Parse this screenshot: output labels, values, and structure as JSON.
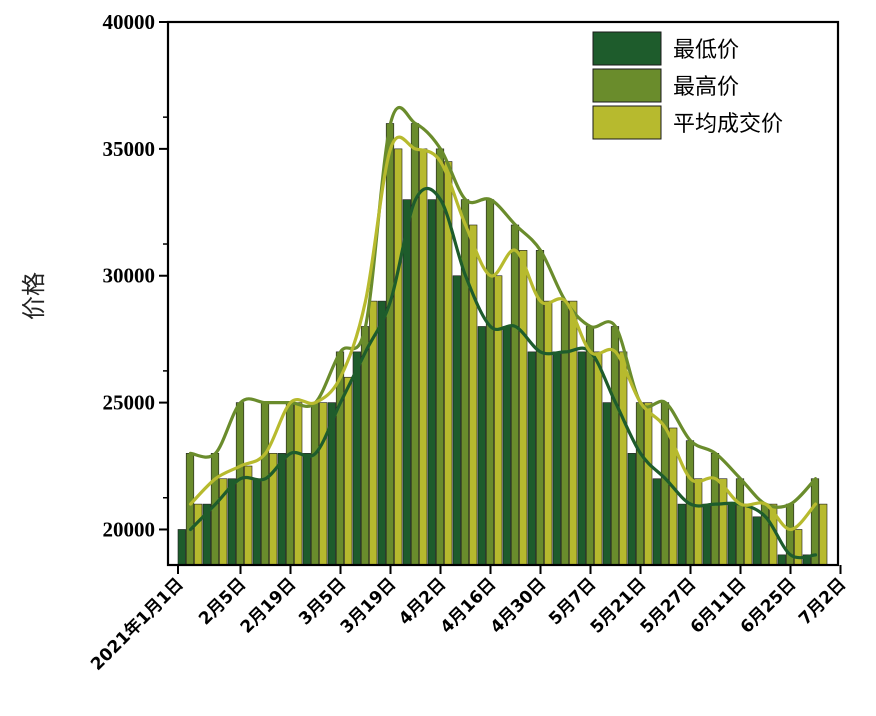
{
  "chart_data": {
    "type": "bar",
    "ylabel": "价格",
    "xlabel": "",
    "ylim": [
      18600,
      40000
    ],
    "yticks": [
      20000,
      25000,
      30000,
      35000,
      40000
    ],
    "x_tick_labels": [
      "2021年1月1日",
      "2月5日",
      "2月19日",
      "3月5日",
      "3月19日",
      "4月2日",
      "4月16日",
      "4月30日",
      "5月7日",
      "5月21日",
      "5月27日",
      "6月11日",
      "6月25日",
      "7月2日"
    ],
    "x_tick_bar_index": [
      0,
      2.5,
      4.5,
      6.5,
      8.5,
      10.5,
      12.5,
      14.5,
      16.5,
      18.5,
      20.5,
      22.5,
      24.5,
      26.5
    ],
    "legend_position": "top-right",
    "series": [
      {
        "name": "最低价",
        "color": "#1e5c2c",
        "values": [
          20000,
          21000,
          22000,
          22000,
          23000,
          23000,
          25000,
          27000,
          29000,
          33000,
          33000,
          30000,
          28000,
          28000,
          27000,
          27000,
          27000,
          25000,
          23000,
          22000,
          21000,
          21000,
          21000,
          20500,
          19000,
          19000
        ]
      },
      {
        "name": "最高价",
        "color": "#6a8c2c",
        "values": [
          23000,
          23000,
          25000,
          25000,
          25000,
          25000,
          27000,
          28000,
          36000,
          36000,
          35000,
          33000,
          33000,
          32000,
          31000,
          29000,
          28000,
          28000,
          25000,
          25000,
          23500,
          23000,
          22000,
          21000,
          21000,
          22000
        ]
      },
      {
        "name": "平均成交价",
        "color": "#b7ba2e",
        "values": [
          21000,
          22000,
          22500,
          23000,
          25000,
          25000,
          26000,
          29000,
          35000,
          35000,
          34500,
          32000,
          30000,
          31000,
          29000,
          29000,
          27000,
          27000,
          25000,
          24000,
          22000,
          22000,
          21000,
          21000,
          20000,
          21000
        ]
      }
    ]
  }
}
